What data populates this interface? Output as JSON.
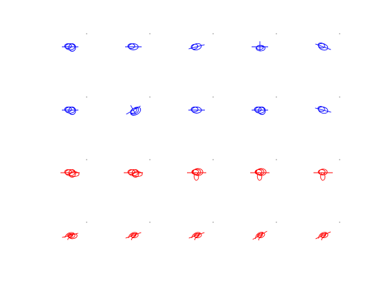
{
  "figure": {
    "layout": {
      "rows": 4,
      "cols": 5
    },
    "row_colors": [
      "#0000ff",
      "#0000ff",
      "#ff0000",
      "#ff0000"
    ],
    "dot_color": "#444444",
    "glyphs": [
      [
        {
          "style": "loops",
          "loops": 3,
          "angle": 0
        },
        {
          "style": "loops",
          "loops": 2,
          "angle": 0
        },
        {
          "style": "loops",
          "loops": 2,
          "angle": -15
        },
        {
          "style": "cross",
          "loops": 2,
          "angle": 0
        },
        {
          "style": "loops",
          "loops": 2,
          "angle": 20
        }
      ],
      [
        {
          "style": "loops",
          "loops": 3,
          "angle": 0
        },
        {
          "style": "cross",
          "loops": 3,
          "angle": -30
        },
        {
          "style": "loops",
          "loops": 2,
          "angle": 0
        },
        {
          "style": "loops",
          "loops": 3,
          "angle": 0
        },
        {
          "style": "loops",
          "loops": 2,
          "angle": 15
        }
      ],
      [
        {
          "style": "loops",
          "loops": 4,
          "angle": 0
        },
        {
          "style": "loops",
          "loops": 4,
          "angle": 0
        },
        {
          "style": "drop",
          "loops": 3,
          "angle": 0
        },
        {
          "style": "drop",
          "loops": 3,
          "angle": 0
        },
        {
          "style": "drop",
          "loops": 2,
          "angle": 0
        }
      ],
      [
        {
          "style": "zig",
          "loops": 3,
          "angle": -10
        },
        {
          "style": "zig",
          "loops": 2,
          "angle": -15
        },
        {
          "style": "zig",
          "loops": 2,
          "angle": -15
        },
        {
          "style": "zig",
          "loops": 2,
          "angle": -25
        },
        {
          "style": "zig",
          "loops": 2,
          "angle": -20
        }
      ]
    ]
  }
}
